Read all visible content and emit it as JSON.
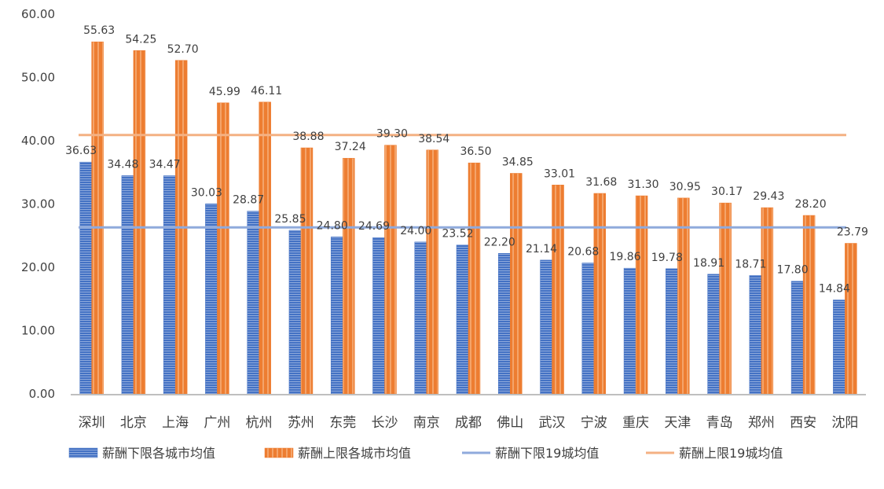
{
  "chart_data": {
    "type": "bar",
    "categories": [
      "深圳",
      "北京",
      "上海",
      "广州",
      "杭州",
      "苏州",
      "东莞",
      "长沙",
      "南京",
      "成都",
      "佛山",
      "武汉",
      "宁波",
      "重庆",
      "天津",
      "青岛",
      "郑州",
      "西安",
      "沈阳"
    ],
    "series": [
      {
        "name": "薪酬下限各城市均值",
        "color": "#4472C4",
        "values": [
          36.63,
          34.48,
          34.47,
          30.03,
          28.87,
          25.85,
          24.8,
          24.69,
          24.0,
          23.52,
          22.2,
          21.14,
          20.68,
          19.86,
          19.78,
          18.91,
          18.71,
          17.8,
          14.84
        ],
        "labels": [
          "36.63",
          "34.48",
          "34.47",
          "30.03",
          "28.87",
          "25.85",
          "24.80",
          "24.69",
          "24.00",
          "23.52",
          "22.20",
          "21.14",
          "20.68",
          "19.86",
          "19.78",
          "18.91",
          "18.71",
          "17.80",
          "14.84"
        ]
      },
      {
        "name": "薪酬上限各城市均值",
        "color": "#ED7D31",
        "values": [
          55.63,
          54.25,
          52.7,
          45.99,
          46.11,
          38.88,
          37.24,
          39.3,
          38.54,
          36.5,
          34.85,
          33.01,
          31.68,
          31.3,
          30.95,
          30.17,
          29.43,
          28.2,
          23.79
        ],
        "labels": [
          "55.63",
          "54.25",
          "52.70",
          "45.99",
          "46.11",
          "38.88",
          "37.24",
          "39.30",
          "38.54",
          "36.50",
          "34.85",
          "33.01",
          "31.68",
          "31.30",
          "30.95",
          "30.17",
          "29.43",
          "28.20",
          "23.79"
        ]
      }
    ],
    "reference_lines": [
      {
        "name": "薪酬下限19城均值",
        "color": "#8FAADC",
        "value": 26.3
      },
      {
        "name": "薪酬上限19城均值",
        "color": "#F4B183",
        "value": 40.9
      }
    ],
    "y_ticks": [
      "0.00",
      "10.00",
      "20.00",
      "30.00",
      "40.00",
      "50.00",
      "60.00"
    ],
    "ylim": [
      0,
      60
    ],
    "grid": false,
    "legend_position": "bottom"
  }
}
